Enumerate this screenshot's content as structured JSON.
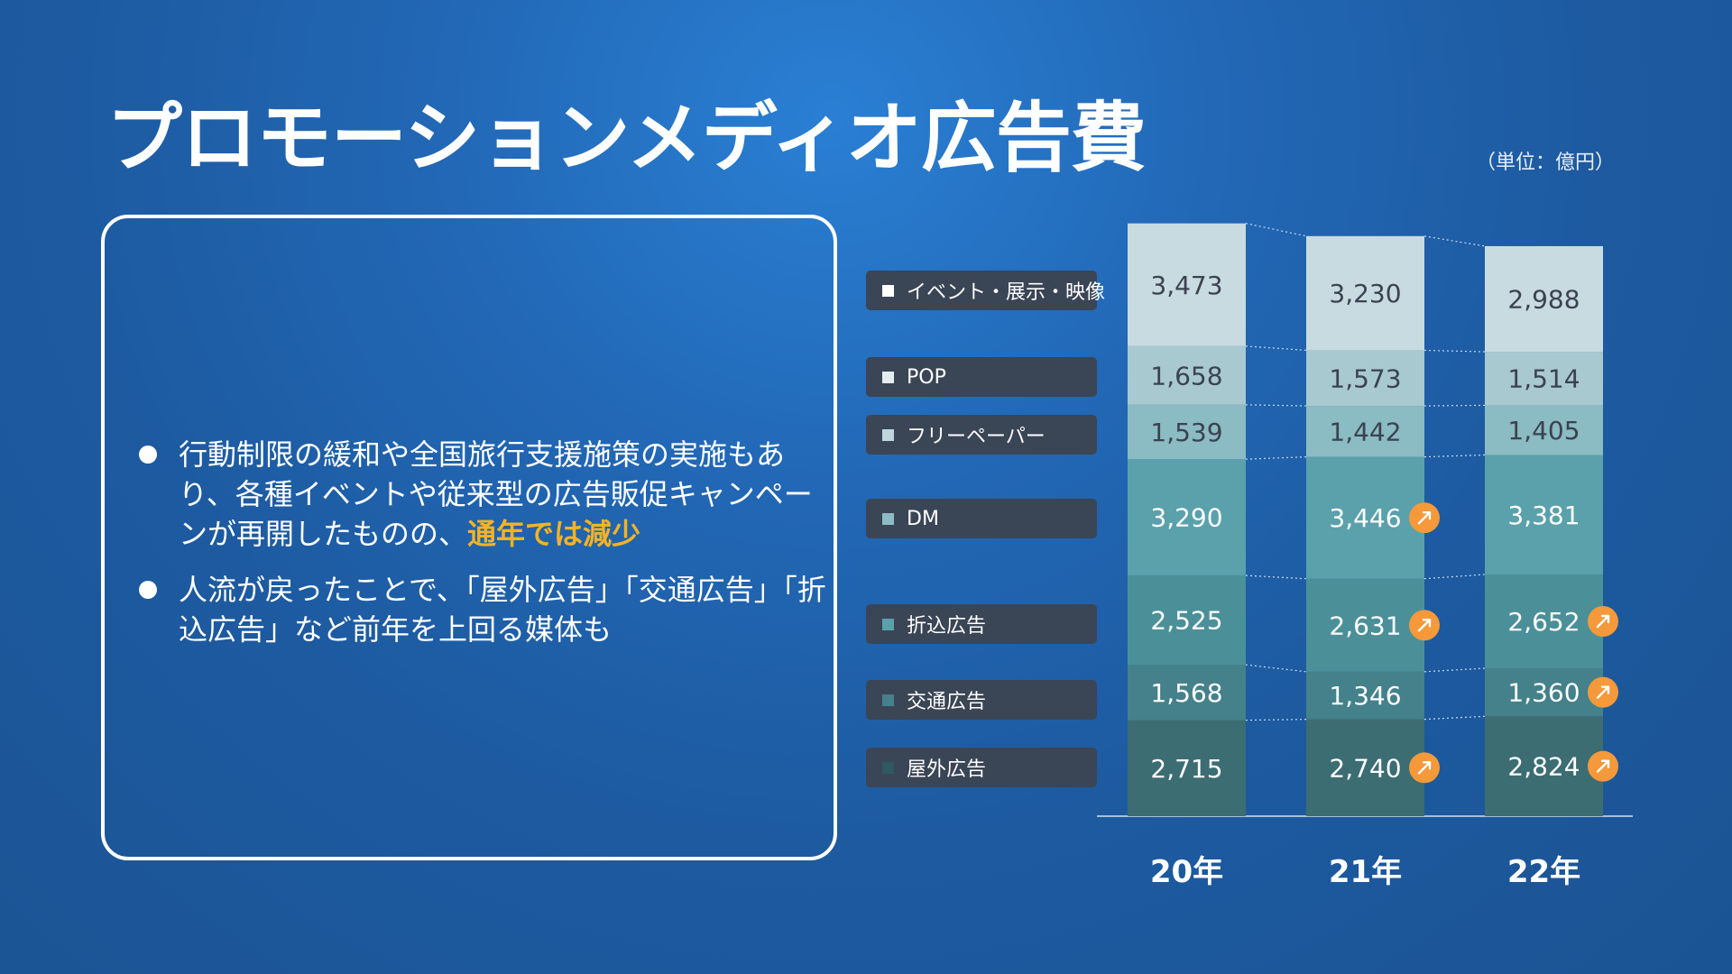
{
  "title": "プロモーションメディオ広告費",
  "unit": "（単位：億円）",
  "bullets": [
    {
      "text_before": "行動制限の緩和や全国旅行支援施策の実施もあり、各種イベントや従来型の広告販促キャンペーンが再開したものの、",
      "highlight": "通年では減少",
      "text_after": ""
    },
    {
      "text_before": "人流が戻ったことで、「屋外広告」「交通広告」「折込広告」など前年を上回る媒体も",
      "highlight": "",
      "text_after": ""
    }
  ],
  "colors": {
    "highlight": "#f5b324",
    "up_badge": "#f5993a",
    "legend_bg": "#3a4555"
  },
  "up_icon": "arrow-up-right-icon",
  "chart_data": {
    "type": "bar",
    "stacked": true,
    "categories": [
      "20年",
      "21年",
      "22年"
    ],
    "series": [
      {
        "name": "屋外広告",
        "values": [
          2715,
          2740,
          2824
        ],
        "increased": [
          false,
          true,
          true
        ],
        "color": "#3c6d73"
      },
      {
        "name": "交通広告",
        "values": [
          1568,
          1346,
          1360
        ],
        "increased": [
          false,
          false,
          true
        ],
        "color": "#44818a"
      },
      {
        "name": "折込広告",
        "values": [
          2525,
          2631,
          2652
        ],
        "increased": [
          false,
          true,
          true
        ],
        "color": "#4b9099"
      },
      {
        "name": "DM",
        "values": [
          3290,
          3446,
          3381
        ],
        "increased": [
          false,
          true,
          false
        ],
        "color": "#5aa1ab"
      },
      {
        "name": "フリーペーパー",
        "values": [
          1539,
          1442,
          1405
        ],
        "increased": [
          false,
          false,
          false
        ],
        "color": "#8bbbc3"
      },
      {
        "name": "POP",
        "values": [
          1658,
          1573,
          1514
        ],
        "increased": [
          false,
          false,
          false
        ],
        "color": "#a8c9d0"
      },
      {
        "name": "イベント・展示・映像",
        "values": [
          3473,
          3230,
          2988
        ],
        "increased": [
          false,
          false,
          false
        ],
        "color": "#c8dbe0"
      }
    ],
    "legend_order": [
      "イベント・展示・映像",
      "POP",
      "フリーペーパー",
      "DM",
      "折込広告",
      "交通広告",
      "屋外広告"
    ],
    "legend_placement": "left",
    "grid": false
  }
}
